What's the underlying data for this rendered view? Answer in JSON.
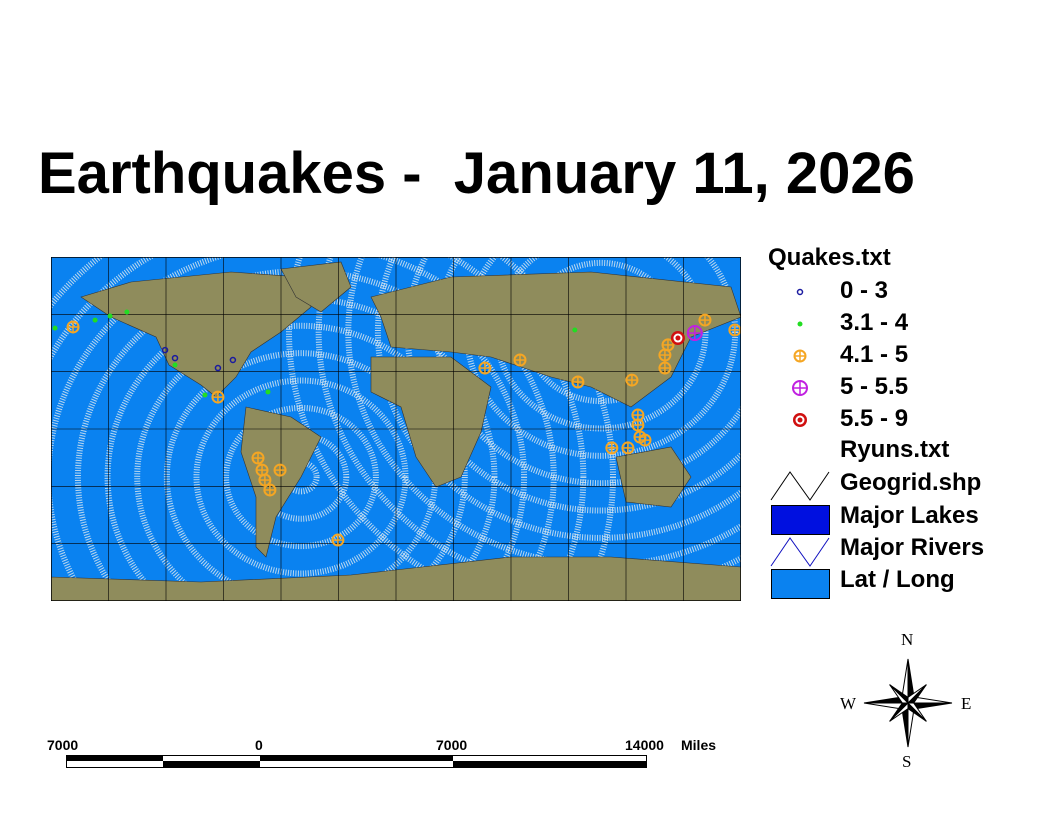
{
  "title": "Earthquakes -  January 11, 2026",
  "legend": {
    "quakes_layer": "Quakes.txt",
    "classes": [
      {
        "label": "0 - 3",
        "color": "#1a1aa0",
        "symbol": "small-circle-cross"
      },
      {
        "label": "3.1 - 4",
        "color": "#22dd22",
        "symbol": "small-dot"
      },
      {
        "label": "4.1 - 5",
        "color": "#f5a623",
        "symbol": "circle-cross"
      },
      {
        "label": "5 - 5.5",
        "color": "#c020e0",
        "symbol": "circle-cross"
      },
      {
        "label": "5.5 - 9",
        "color": "#d01010",
        "symbol": "bullseye"
      }
    ],
    "ryuns_layer": "Ryuns.txt",
    "geogrid": "Geogrid.shp",
    "lakes": "Major Lakes",
    "rivers": "Major Rivers",
    "latlong": "Lat / Long",
    "colors": {
      "lakes": "#0010e0",
      "rivers": "#1010c0",
      "latlong": "#0a82f0",
      "land": "#8f8c5c"
    }
  },
  "scalebar": {
    "labels": [
      "7000",
      "0",
      "7000",
      "14000"
    ],
    "unit": "Miles"
  },
  "compass": {
    "n": "N",
    "s": "S",
    "e": "E",
    "w": "W"
  },
  "quakes": [
    {
      "lon": -177.9,
      "lat": 52.8,
      "cls": 1
    },
    {
      "lon": -157,
      "lat": 57,
      "cls": 1
    },
    {
      "lon": -149.2,
      "lat": 59.1,
      "cls": 1
    },
    {
      "lon": -140.4,
      "lat": 61.2,
      "cls": 1
    },
    {
      "lon": -115.3,
      "lat": 33.5,
      "cls": 1
    },
    {
      "lon": -99.7,
      "lat": 17.8,
      "cls": 1
    },
    {
      "lon": -66.8,
      "lat": 19.4,
      "cls": 1
    },
    {
      "lon": 93.3,
      "lat": 51.8,
      "cls": 1
    },
    {
      "lon": -120.5,
      "lat": 41.3,
      "cls": 0
    },
    {
      "lon": -115.3,
      "lat": 37.1,
      "cls": 0
    },
    {
      "lon": -92.9,
      "lat": 31.9,
      "cls": 0
    },
    {
      "lon": -85.1,
      "lat": 36.1,
      "cls": 0
    },
    {
      "lon": -168.5,
      "lat": 53.4,
      "cls": 2
    },
    {
      "lon": -92.9,
      "lat": 16.7,
      "cls": 2
    },
    {
      "lon": -72,
      "lat": -15.2,
      "cls": 2
    },
    {
      "lon": -69.9,
      "lat": -21.5,
      "cls": 2
    },
    {
      "lon": -68.4,
      "lat": -26.7,
      "cls": 2
    },
    {
      "lon": -65.8,
      "lat": -31.9,
      "cls": 2
    },
    {
      "lon": -60.5,
      "lat": -21.5,
      "cls": 2
    },
    {
      "lon": -30.3,
      "lat": -58.1,
      "cls": 2
    },
    {
      "lon": 46.4,
      "lat": 31.9,
      "cls": 2
    },
    {
      "lon": 64.7,
      "lat": 36.1,
      "cls": 2
    },
    {
      "lon": 94.9,
      "lat": 24.6,
      "cls": 2
    },
    {
      "lon": 123.1,
      "lat": 25.6,
      "cls": 2
    },
    {
      "lon": 126.2,
      "lat": 7.3,
      "cls": 2
    },
    {
      "lon": 126.2,
      "lat": 2.1,
      "cls": 2
    },
    {
      "lon": 127.3,
      "lat": -4.2,
      "cls": 2
    },
    {
      "lon": 112.6,
      "lat": -9.9,
      "cls": 2
    },
    {
      "lon": 121,
      "lat": -9.9,
      "cls": 2
    },
    {
      "lon": 129.9,
      "lat": -5.8,
      "cls": 2
    },
    {
      "lon": 140.3,
      "lat": 38.7,
      "cls": 2
    },
    {
      "lon": 140.3,
      "lat": 31.9,
      "cls": 2
    },
    {
      "lon": 141.9,
      "lat": 44,
      "cls": 2
    },
    {
      "lon": 161.2,
      "lat": 57,
      "cls": 2
    },
    {
      "lon": 176.8,
      "lat": 51.8,
      "cls": 2
    },
    {
      "lon": 155.9,
      "lat": 50.2,
      "cls": 3
    },
    {
      "lon": 147.1,
      "lat": 47.6,
      "cls": 4
    }
  ]
}
